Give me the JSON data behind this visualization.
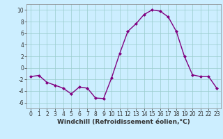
{
  "x": [
    0,
    1,
    2,
    3,
    4,
    5,
    6,
    7,
    8,
    9,
    10,
    11,
    12,
    13,
    14,
    15,
    16,
    17,
    18,
    19,
    20,
    21,
    22,
    23
  ],
  "y": [
    -1.5,
    -1.3,
    -2.5,
    -3.0,
    -3.5,
    -4.5,
    -3.3,
    -3.5,
    -5.2,
    -5.3,
    -1.7,
    2.5,
    6.3,
    7.6,
    9.2,
    10.0,
    9.8,
    8.8,
    6.3,
    2.0,
    -1.2,
    -1.5,
    -1.5,
    -3.5
  ],
  "line_color": "#800080",
  "marker": "D",
  "marker_size": 2.0,
  "linewidth": 1.0,
  "xlabel": "Windchill (Refroidissement éolien,°C)",
  "xlabel_fontsize": 6.5,
  "xlabel_fontweight": "bold",
  "xlim": [
    -0.5,
    23.5
  ],
  "ylim": [
    -7,
    11
  ],
  "yticks": [
    -6,
    -4,
    -2,
    0,
    2,
    4,
    6,
    8,
    10
  ],
  "xticks": [
    0,
    1,
    2,
    3,
    4,
    5,
    6,
    7,
    8,
    9,
    10,
    11,
    12,
    13,
    14,
    15,
    16,
    17,
    18,
    19,
    20,
    21,
    22,
    23
  ],
  "tick_fontsize": 5.5,
  "bg_color": "#cceeff",
  "grid_color": "#99cccc",
  "fig_bg": "#cceeff",
  "spine_color": "#888888"
}
